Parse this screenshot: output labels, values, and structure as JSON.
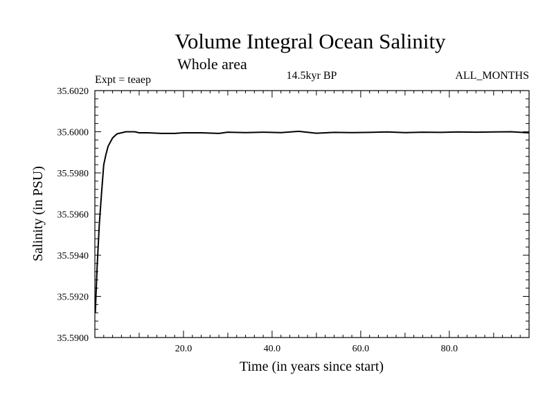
{
  "chart_data": {
    "type": "line",
    "title": "Volume Integral Ocean Salinity",
    "subtitle": "Whole area",
    "experiment": "Expt = teaep",
    "period": "14.5kyr BP",
    "months": "ALL_MONTHS",
    "xlabel": "Time (in years since start)",
    "ylabel": "Salinity (in PSU)",
    "xlim": [
      0,
      98
    ],
    "ylim": [
      35.59,
      35.602
    ],
    "x_ticks": [
      20,
      40,
      60,
      80
    ],
    "x_tick_labels": [
      "20.0",
      "40.0",
      "60.0",
      "80.0"
    ],
    "y_ticks": [
      35.59,
      35.592,
      35.594,
      35.596,
      35.598,
      35.6,
      35.602
    ],
    "y_tick_labels": [
      "35.5900",
      "35.5920",
      "35.5940",
      "35.5960",
      "35.5980",
      "35.6000",
      "35.6020"
    ],
    "grid": false,
    "series": [
      {
        "name": "Salinity",
        "color": "#000000",
        "x": [
          0.1,
          0.5,
          1,
          1.5,
          2,
          2.5,
          3,
          4,
          5,
          6,
          7,
          8,
          9,
          10,
          12,
          15,
          18,
          20,
          24,
          28,
          30,
          34,
          38,
          42,
          46,
          50,
          54,
          58,
          62,
          66,
          70,
          74,
          78,
          82,
          86,
          90,
          94,
          98
        ],
        "values": [
          35.5912,
          35.5934,
          35.5955,
          35.597,
          35.5984,
          35.5989,
          35.5993,
          35.5997,
          35.5999,
          35.59995,
          35.6,
          35.6,
          35.6,
          35.59995,
          35.59995,
          35.59992,
          35.59992,
          35.59995,
          35.59995,
          35.59992,
          35.59998,
          35.59996,
          35.59998,
          35.59996,
          35.60002,
          35.59993,
          35.59997,
          35.59996,
          35.59997,
          35.59999,
          35.59996,
          35.59998,
          35.59997,
          35.59999,
          35.59998,
          35.59999,
          35.6,
          35.59995
        ]
      }
    ]
  }
}
